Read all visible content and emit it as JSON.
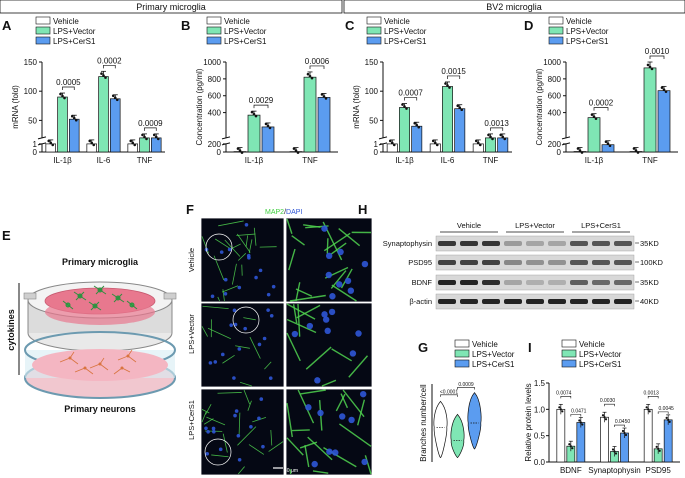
{
  "colors": {
    "vehicle": "#ffffff",
    "lps_vector": "#7fe6b4",
    "lps_cers1": "#5b9cf0",
    "dish_pink": "#e8788e",
    "micro_green": "#4fd34f",
    "micro_blue": "#2f56d6"
  },
  "headers": {
    "primary": "Primary microglia",
    "bv2": "BV2 microglia"
  },
  "legend": {
    "vehicle": "Vehicle",
    "lps_vector": "LPS+Vector",
    "lps_cers1": "LPS+CerS1"
  },
  "chart_data": [
    {
      "id": "A",
      "type": "bar",
      "panel_label": "A",
      "ylabel": "mRNA (fold)",
      "categories": [
        "IL-1β",
        "IL-6",
        "TNF"
      ],
      "yticks": [
        0,
        1,
        50,
        100,
        150
      ],
      "ylim": [
        0,
        150
      ],
      "axis_break": true,
      "series": [
        {
          "name": "Vehicle",
          "values": [
            1,
            1,
            1
          ]
        },
        {
          "name": "LPS+Vector",
          "values": [
            90,
            125,
            10
          ]
        },
        {
          "name": "LPS+CerS1",
          "values": [
            52,
            87,
            6
          ]
        }
      ],
      "comparisons": [
        "0.0005",
        "0.0002",
        "0.0009"
      ]
    },
    {
      "id": "B",
      "type": "bar",
      "panel_label": "B",
      "ylabel": "Concentration (pg/ml)",
      "categories": [
        "IL-1β",
        "TNF"
      ],
      "yticks": [
        0,
        200,
        400,
        600,
        800,
        1000
      ],
      "ylim": [
        0,
        1000
      ],
      "axis_break": true,
      "series": [
        {
          "name": "Vehicle",
          "values": [
            10,
            10
          ]
        },
        {
          "name": "LPS+Vector",
          "values": [
            370,
            820
          ]
        },
        {
          "name": "LPS+CerS1",
          "values": [
            230,
            580
          ]
        }
      ],
      "comparisons": [
        "0.0029",
        "0.0006"
      ]
    },
    {
      "id": "C",
      "type": "bar",
      "panel_label": "C",
      "ylabel": "mRNA (fold)",
      "categories": [
        "IL-1β",
        "IL-6",
        "TNF"
      ],
      "yticks": [
        0,
        1,
        50,
        100,
        150
      ],
      "ylim": [
        0,
        150
      ],
      "axis_break": true,
      "series": [
        {
          "name": "Vehicle",
          "values": [
            1,
            1,
            1
          ]
        },
        {
          "name": "LPS+Vector",
          "values": [
            72,
            108,
            15
          ]
        },
        {
          "name": "LPS+CerS1",
          "values": [
            40,
            70,
            9
          ]
        }
      ],
      "comparisons": [
        "0.0007",
        "0.0015",
        "0.0013"
      ]
    },
    {
      "id": "D",
      "type": "bar",
      "panel_label": "D",
      "ylabel": "Concentration (pg/ml)",
      "categories": [
        "IL-1β",
        "TNF"
      ],
      "yticks": [
        0,
        200,
        400,
        600,
        800,
        1000
      ],
      "ylim": [
        0,
        1000
      ],
      "axis_break": true,
      "series": [
        {
          "name": "Vehicle",
          "values": [
            12,
            12
          ]
        },
        {
          "name": "LPS+Vector",
          "values": [
            340,
            930
          ]
        },
        {
          "name": "LPS+CerS1",
          "values": [
            180,
            660
          ]
        }
      ],
      "comparisons": [
        "0.0002",
        "0.0010"
      ]
    },
    {
      "id": "G",
      "type": "violin",
      "panel_label": "G",
      "ylabel": "Branches number/cell",
      "categories": [
        "Vehicle",
        "LPS+Vector",
        "LPS+CerS1"
      ],
      "medians": [
        8,
        5,
        9
      ],
      "ranges": [
        [
          1,
          14
        ],
        [
          1,
          11
        ],
        [
          3,
          16
        ]
      ],
      "comparisons": [
        "<0.0001",
        "0.0009"
      ]
    },
    {
      "id": "I",
      "type": "bar",
      "panel_label": "I",
      "ylabel": "Relative protein levels",
      "categories": [
        "BDNF",
        "Synaptophysin",
        "PSD95"
      ],
      "yticks": [
        0.0,
        0.5,
        1.0,
        1.5
      ],
      "ylim": [
        0,
        1.5
      ],
      "series": [
        {
          "name": "Vehicle",
          "values": [
            1.0,
            0.85,
            1.0
          ]
        },
        {
          "name": "LPS+Vector",
          "values": [
            0.3,
            0.2,
            0.25
          ]
        },
        {
          "name": "LPS+CerS1",
          "values": [
            0.75,
            0.55,
            0.8
          ]
        }
      ],
      "comparisons": [
        [
          "0.0074",
          "0.0471"
        ],
        [
          "0.0030",
          "0.0450"
        ],
        [
          "0.0013",
          "0.0045"
        ]
      ]
    }
  ],
  "panel_E": {
    "label": "E",
    "top_text": "Primary microglia",
    "side_text": "cytokines",
    "bottom_text": "Primary neurons"
  },
  "panel_F": {
    "label": "F",
    "stain_green": "MAP2",
    "stain_sep": "/",
    "stain_blue": "DAPI",
    "rows": [
      "Vehicle",
      "LPS+Vector",
      "LPS+CerS1"
    ],
    "scale_bar": "50 μm"
  },
  "panel_H": {
    "label": "H",
    "groups": [
      "Vehicle",
      "LPS+Vector",
      "LPS+CerS1"
    ],
    "proteins": [
      {
        "name": "Synaptophysin",
        "marker": "35KD"
      },
      {
        "name": "PSD95",
        "marker": "100KD"
      },
      {
        "name": "BDNF",
        "marker": "35KD"
      },
      {
        "name": "β-actin",
        "marker": "40KD"
      }
    ]
  }
}
